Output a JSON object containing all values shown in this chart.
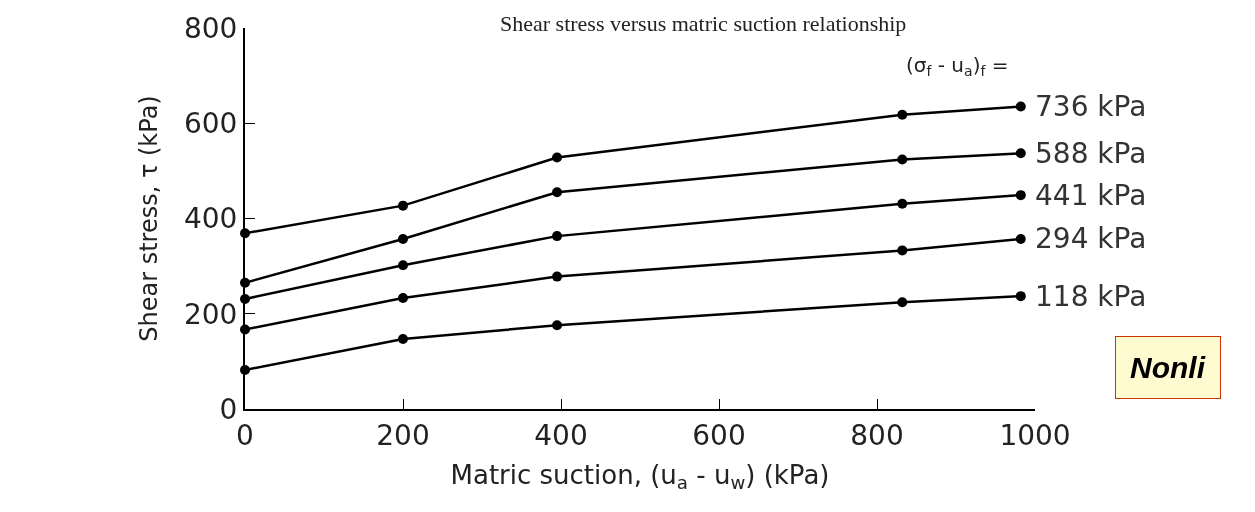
{
  "chart_data": {
    "type": "line",
    "title": "Shear stress versus matric suction relationship",
    "xlabel": "Matric suction, (u$_{a}$ - u$_{w}$) (kPa)",
    "ylabel": "Shear stress, τ (kPa)",
    "x": [
      0,
      200,
      395,
      832,
      982
    ],
    "series": [
      {
        "name": "736 kPa",
        "color": "#000000",
        "values": [
          369,
          427,
          528,
          618,
          635
        ]
      },
      {
        "name": "588 kPa",
        "color": "#000000",
        "values": [
          265,
          357,
          455,
          524,
          537
        ]
      },
      {
        "name": "441 kPa",
        "color": "#000000",
        "values": [
          231,
          302,
          363,
          431,
          449
        ]
      },
      {
        "name": "294 kPa",
        "color": "#000000",
        "values": [
          167,
          233,
          278,
          333,
          357
        ]
      },
      {
        "name": "118 kPa",
        "color": "#000000",
        "values": [
          82,
          147,
          176,
          224,
          237
        ]
      }
    ],
    "annotations": [
      "(σ$_{f}$ - u$_{a}$)$_{f}$ =",
      "Nonli"
    ],
    "xlim": [
      0,
      1000
    ],
    "xticks": [
      0,
      200,
      400,
      600,
      800,
      1000
    ],
    "ylim": [
      0,
      800
    ],
    "yticks": [
      0,
      200,
      400,
      600,
      800
    ],
    "marker": "circle",
    "line_style": "solid"
  }
}
